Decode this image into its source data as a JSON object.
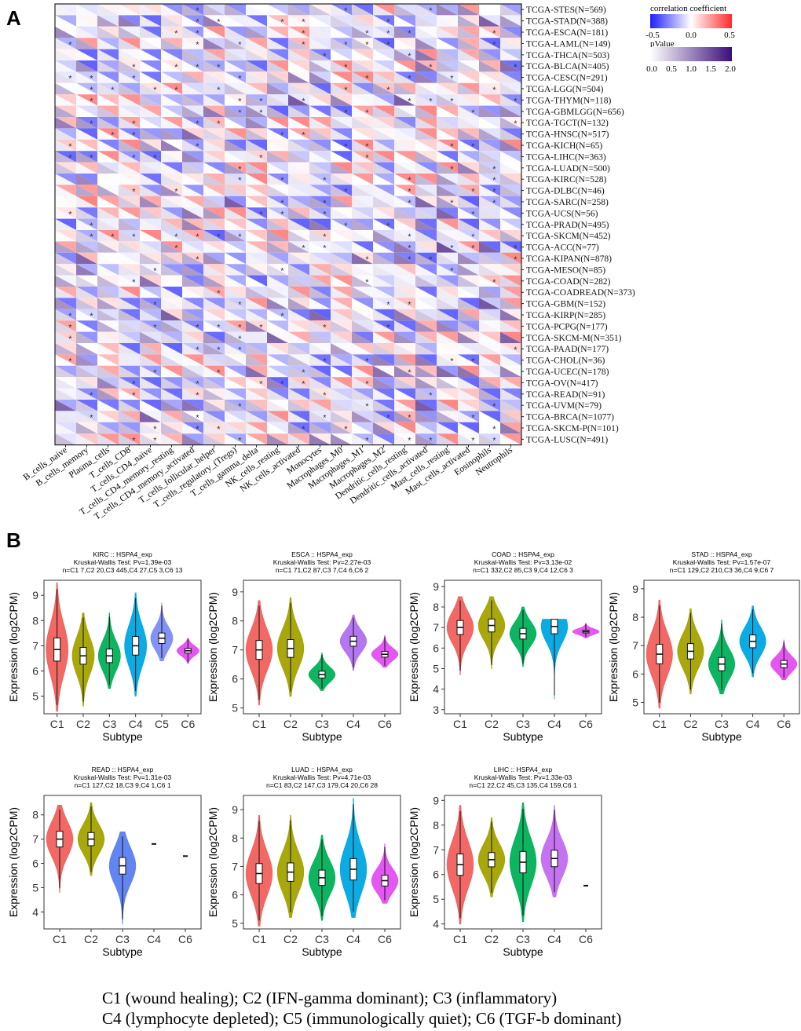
{
  "panels": {
    "a": "A",
    "b": "B"
  },
  "chart_data": [
    {
      "type": "heatmap",
      "panel": "A",
      "rows": [
        "TCGA-STES(N=569)",
        "TCGA-STAD(N=388)",
        "TCGA-ESCA(N=181)",
        "TCGA-LAML(N=149)",
        "TCGA-THCA(N=503)",
        "TCGA-BLCA(N=405)",
        "TCGA-CESC(N=291)",
        "TCGA-LGG(N=504)",
        "TCGA-THYM(N=118)",
        "TCGA-GBMLGG(N=656)",
        "TCGA-TGCT(N=132)",
        "TCGA-HNSC(N=517)",
        "TCGA-KICH(N=65)",
        "TCGA-LIHC(N=363)",
        "TCGA-LUAD(N=500)",
        "TCGA-KIRC(N=528)",
        "TCGA-DLBC(N=46)",
        "TCGA-SARC(N=258)",
        "TCGA-UCS(N=56)",
        "TCGA-PRAD(N=495)",
        "TCGA-SKCM(N=452)",
        "TCGA-ACC(N=77)",
        "TCGA-KIPAN(N=878)",
        "TCGA-MESO(N=85)",
        "TCGA-COAD(N=282)",
        "TCGA-COADREAD(N=373)",
        "TCGA-GBM(N=152)",
        "TCGA-KIRP(N=285)",
        "TCGA-PCPG(N=177)",
        "TCGA-SKCM-M(N=351)",
        "TCGA-PAAD(N=177)",
        "TCGA-CHOL(N=36)",
        "TCGA-UCEC(N=178)",
        "TCGA-OV(N=417)",
        "TCGA-READ(N=91)",
        "TCGA-UVM(N=79)",
        "TCGA-BRCA(N=1077)",
        "TCGA-SKCM-P(N=101)",
        "TCGA-LUSC(N=491)"
      ],
      "columns": [
        "B_cells_naive",
        "B_cells_memory",
        "Plasma_cells",
        "T_cells_CD8",
        "T_cells_CD4_naive",
        "T_cells_CD4_memory_resting",
        "T_cells_CD4_memory_activated",
        "T_cells_follicular_helper",
        "T_cells_regulatory_(Tregs)",
        "T_cells_gamma_delta",
        "NK_cells_resting",
        "NK_cells_activated",
        "Monocytes",
        "Macrophages_M0",
        "Macrophages_M1",
        "Macrophages_M2",
        "Dendritic_cells_resting",
        "Dendritic_cells_activated",
        "Mast_cells_resting",
        "Mast_cells_activated",
        "Eosinophils",
        "Neutrophils"
      ],
      "legend_correlation": {
        "title": "correlation coefficient",
        "ticks": [
          "-0.5",
          "0.0",
          "0.5"
        ],
        "low_color": "#1f1fff",
        "mid_color": "#ffffff",
        "high_color": "#ff2b2b"
      },
      "legend_pvalue": {
        "title": "pValue",
        "ticks": [
          "0.0",
          "0.5",
          "1.0",
          "1.5",
          "2.0"
        ],
        "low_color": "#ffffff",
        "high_color": "#3b0f7a"
      },
      "significance_marker": "*"
    },
    {
      "type": "violin",
      "panel": "B",
      "plots": [
        {
          "title": "KIRC :: HSPA4_exp",
          "test": "Kruskal-Wallis Test: Pv=1.39e-03",
          "n": "n=C1 7,C2 20,C3 445,C4 27,C5 3,C6 13",
          "categories": [
            "C1",
            "C2",
            "C3",
            "C4",
            "C5",
            "C6"
          ],
          "medians": [
            6.85,
            6.6,
            6.6,
            7.0,
            7.3,
            6.8
          ],
          "ranges": [
            [
              4.4,
              9.5
            ],
            [
              4.6,
              8.3
            ],
            [
              5.3,
              8.3
            ],
            [
              5.0,
              9.1
            ],
            [
              6.4,
              8.7
            ],
            [
              6.3,
              7.3
            ]
          ],
          "yticks": [
            5,
            6,
            7,
            8,
            9
          ],
          "ylim": [
            4.3,
            9.6
          ]
        },
        {
          "title": "ESCA :: HSPA4_exp",
          "test": "Kruskal-Wallis Test: Pv=2.27e-03",
          "n": "n=C1 71,C2 87,C3 7,C4 6,C6 2",
          "categories": [
            "C1",
            "C2",
            "C3",
            "C4",
            "C6"
          ],
          "medians": [
            7.0,
            7.05,
            6.15,
            7.3,
            6.85
          ],
          "ranges": [
            [
              5.1,
              8.7
            ],
            [
              5.4,
              8.8
            ],
            [
              5.6,
              6.9
            ],
            [
              6.3,
              8.2
            ],
            [
              6.4,
              7.5
            ]
          ],
          "yticks": [
            5,
            6,
            7,
            8,
            9
          ],
          "ylim": [
            4.8,
            9.4
          ]
        },
        {
          "title": "COAD :: HSPA4_exp",
          "test": "Kruskal-Wallis Test: Pv=3.13e-02",
          "n": "n=C1 332,C2 85,C3 9,C4 12,C6 3",
          "categories": [
            "C1",
            "C2",
            "C3",
            "C4",
            "C6"
          ],
          "medians": [
            7.0,
            7.1,
            6.7,
            7.05,
            6.8
          ],
          "ranges": [
            [
              4.7,
              8.5
            ],
            [
              5.0,
              8.5
            ],
            [
              5.1,
              8.0
            ],
            [
              3.5,
              7.4
            ],
            [
              6.5,
              7.2
            ]
          ],
          "yticks": [
            3,
            4,
            5,
            6,
            7,
            8,
            9
          ],
          "ylim": [
            2.8,
            9.3
          ]
        },
        {
          "title": "STAD :: HSPA4_exp",
          "test": "Kruskal-Wallis Test: Pv=1.57e-07",
          "n": "n=C1 129,C2 210,C3 36,C4 9,C6 7",
          "categories": [
            "C1",
            "C2",
            "C3",
            "C4",
            "C6"
          ],
          "medians": [
            6.7,
            6.8,
            6.35,
            7.15,
            6.35
          ],
          "ranges": [
            [
              4.8,
              8.6
            ],
            [
              5.3,
              8.3
            ],
            [
              5.3,
              7.9
            ],
            [
              5.9,
              8.4
            ],
            [
              5.8,
              7.2
            ]
          ],
          "yticks": [
            5,
            6,
            7,
            8,
            9
          ],
          "ylim": [
            4.6,
            9.3
          ]
        },
        {
          "title": "READ :: HSPA4_exp",
          "test": "Kruskal-Wallis Test: Pv=1.31e-03",
          "n": "n=C1 127,C2 18,C3 9,C4 1,C6 1",
          "categories": [
            "C1",
            "C2",
            "C3",
            "C4",
            "C6"
          ],
          "medians": [
            7.0,
            7.0,
            5.9,
            6.8,
            6.3
          ],
          "ranges": [
            [
              4.8,
              8.4
            ],
            [
              5.5,
              8.5
            ],
            [
              3.5,
              7.3
            ],
            [
              6.8,
              6.8
            ],
            [
              6.3,
              6.3
            ]
          ],
          "yticks": [
            4,
            5,
            6,
            7,
            8
          ],
          "ylim": [
            3.3,
            8.8
          ]
        },
        {
          "title": "LUAD :: HSPA4_exp",
          "test": "Kruskal-Wallis Test: Pv=4.71e-03",
          "n": "n=C1 83,C2 147,C3 179,C4 20,C6 28",
          "categories": [
            "C1",
            "C2",
            "C3",
            "C4",
            "C6"
          ],
          "medians": [
            6.75,
            6.8,
            6.6,
            6.9,
            6.5
          ],
          "ranges": [
            [
              4.9,
              8.8
            ],
            [
              5.2,
              8.8
            ],
            [
              5.1,
              8.1
            ],
            [
              5.2,
              9.4
            ],
            [
              5.7,
              7.8
            ]
          ],
          "yticks": [
            5,
            6,
            7,
            8,
            9
          ],
          "ylim": [
            4.8,
            9.5
          ]
        },
        {
          "title": "LIHC :: HSPA4_exp",
          "test": "Kruskal-Wallis Test: Pv=1.33e-03",
          "n": "n=C1 22,C2 45,C3 135,C4 159,C6 1",
          "categories": [
            "C1",
            "C2",
            "C3",
            "C4",
            "C6"
          ],
          "medians": [
            6.4,
            6.6,
            6.5,
            6.65,
            5.55
          ],
          "ranges": [
            [
              4.0,
              8.8
            ],
            [
              5.1,
              8.3
            ],
            [
              4.1,
              8.9
            ],
            [
              5.1,
              8.8
            ],
            [
              5.55,
              5.55
            ]
          ],
          "yticks": [
            4,
            5,
            6,
            7,
            8,
            9
          ],
          "ylim": [
            3.8,
            9.2
          ]
        }
      ],
      "xlabel": "Subtype",
      "ylabel": "Expression (log2CPM)",
      "colors": {
        "C1": "#f0605c",
        "C2": "#a3a300",
        "C3": "#00b159",
        "C4": "#00a7e1",
        "C5": "#7d8cf5",
        "C6": "#e34ef2",
        "ESCA_C4": "#b070f0",
        "LIHC_C4": "#c26cf2",
        "READ_C3": "#5b7ef0"
      }
    }
  ],
  "legend_lines": [
    "C1 (wound healing);  C2 (IFN-gamma dominant);  C3 (inflammatory)",
    "C4 (lymphocyte depleted); C5 (immunologically quiet); C6 (TGF-b dominant)"
  ]
}
